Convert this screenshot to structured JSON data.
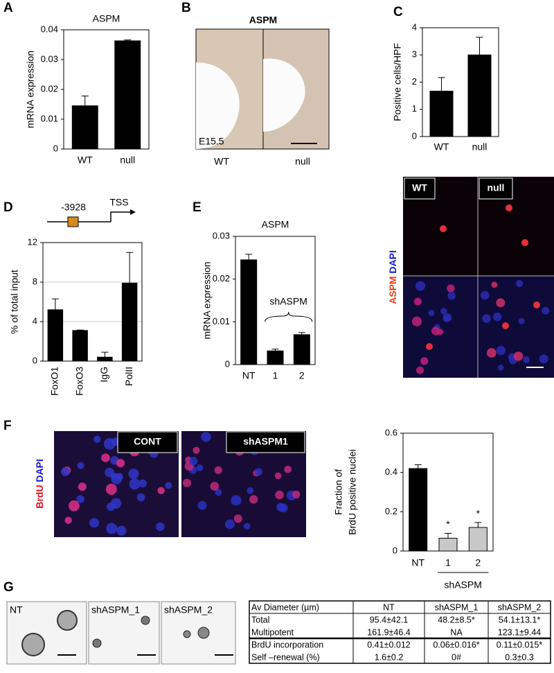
{
  "panel_labels": [
    "A",
    "B",
    "C",
    "D",
    "E",
    "F",
    "G"
  ],
  "chart_data": [
    {
      "type": "bar",
      "title": "ASPM",
      "y_label": "mRNA expression",
      "categories": [
        "WT",
        "null"
      ],
      "values": [
        0.0145,
        0.0363
      ],
      "errors": [
        0.0033,
        0.0003
      ],
      "colors": [
        "#000000",
        "#000000"
      ],
      "ylim": [
        0,
        0.04
      ],
      "yticks": [
        0,
        0.01,
        0.02,
        0.03,
        0.04
      ],
      "grid": false
    },
    {
      "type": "bar",
      "y_label": "Positive cells/HPF",
      "categories": [
        "WT",
        "null"
      ],
      "values": [
        1.67,
        3.0
      ],
      "errors": [
        0.5,
        0.65
      ],
      "colors": [
        "#000000",
        "#000000"
      ],
      "ylim": [
        0,
        4
      ],
      "yticks": [
        0,
        1,
        2,
        3,
        4
      ],
      "grid": false
    },
    {
      "type": "bar",
      "y_label": "% of total input",
      "categories": [
        "FoxO1",
        "FoxO3",
        "IgG",
        "PolII"
      ],
      "values": [
        5.2,
        3.1,
        0.4,
        7.9
      ],
      "errors": [
        1.1,
        0.05,
        0.5,
        3.1
      ],
      "colors": [
        "#000000",
        "#000000",
        "#000000",
        "#000000"
      ],
      "ylim": [
        0,
        12
      ],
      "yticks": [
        0,
        4,
        8,
        12
      ],
      "grid": true
    },
    {
      "type": "bar",
      "title": "ASPM",
      "y_label": "mRNA expression",
      "categories": [
        "NT",
        "1",
        "2"
      ],
      "values": [
        0.0245,
        0.0032,
        0.007
      ],
      "errors": [
        0.0013,
        0.0004,
        0.0005
      ],
      "colors": [
        "#000000",
        "#000000",
        "#000000"
      ],
      "ylim": [
        0,
        0.03
      ],
      "yticks": [
        0,
        0.01,
        0.02,
        0.03
      ],
      "grid": false,
      "group_label": "shASPM"
    },
    {
      "type": "bar",
      "y_label": [
        "Fraction of",
        "BrdU positive nuclei"
      ],
      "categories": [
        "NT",
        "1",
        "2"
      ],
      "values": [
        0.42,
        0.065,
        0.12
      ],
      "errors": [
        0.02,
        0.025,
        0.025
      ],
      "colors": [
        "#000000",
        "#c8c8c8",
        "#c8c8c8"
      ],
      "markers": [
        null,
        "*",
        "*"
      ],
      "ylim": [
        0,
        0.6
      ],
      "yticks": [
        0,
        0.2,
        0.4,
        0.6
      ],
      "grid": false,
      "group_label": "shASPM"
    }
  ],
  "panel_b": {
    "title": "ASPM",
    "stage": "E15.5",
    "columns": [
      "WT",
      "null"
    ]
  },
  "panel_c_images": {
    "columns": [
      "WT",
      "null"
    ],
    "stain": [
      "ASPM",
      "DAPI"
    ]
  },
  "panel_d_diagram": {
    "site": "-3928",
    "tss": "TSS"
  },
  "panel_f_images": {
    "columns": [
      "CONT",
      "shASPM1"
    ],
    "stain": [
      "BrdU",
      "DAPI"
    ]
  },
  "panel_g_images": {
    "columns": [
      "NT",
      "shASPM_1",
      "shASPM_2"
    ]
  },
  "table": {
    "header": [
      "Av Diameter  (µm)",
      "NT",
      "shASPM_1",
      "shASPM_2"
    ],
    "rows": [
      [
        "Total",
        "95.4±42.1",
        "48.2±8.5*",
        "54.1±13.1*"
      ],
      [
        "Multipotent",
        "161.9±46.4",
        "NA",
        "123.1±9.44"
      ],
      [
        "BrdU incorporation",
        "0.41±0.012",
        "0.06±0.016*",
        "0.11±0.015*"
      ],
      [
        "Self –renewal (%)",
        "1.6±0.2",
        "0#",
        "0.3±0.3"
      ]
    ]
  }
}
